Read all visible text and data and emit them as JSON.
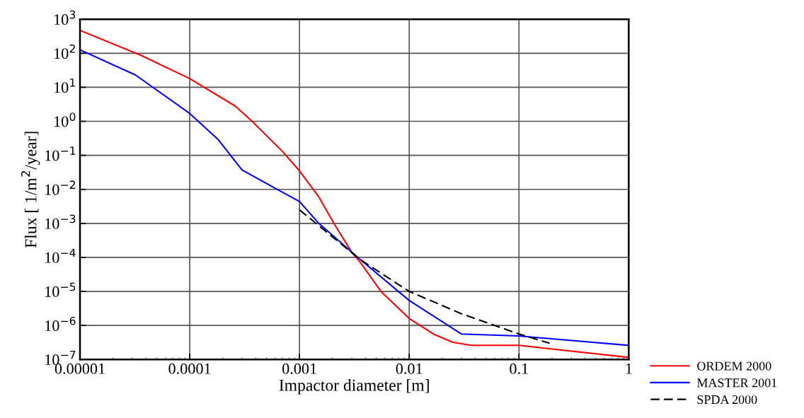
{
  "chart_data": {
    "type": "line",
    "xlabel": "Impactor diameter [m]",
    "ylabel": "Flux [ 1/m$^{2}$/year]",
    "log": "xy",
    "grid": true,
    "legend": "bottom right",
    "xlim": [
      1e-05,
      1
    ],
    "xticks": [
      {
        "value": 1e-05,
        "label": "0.00001"
      },
      {
        "value": 0.0001,
        "label": "0.0001"
      },
      {
        "value": 0.001,
        "label": "0.001"
      },
      {
        "value": 0.01,
        "label": "0.01"
      },
      {
        "value": 0.1,
        "label": "0.1"
      },
      1
    ],
    "ylim": [
      1e-07,
      1000
    ],
    "yticks": [
      {
        "value": 1e-07,
        "label": "10$^{−7}$"
      },
      {
        "value": 1e-06,
        "label": "10$^{−6}$"
      },
      {
        "value": 1e-05,
        "label": "10$^{−5}$"
      },
      {
        "value": 0.0001,
        "label": "10$^{−4}$"
      },
      {
        "value": 0.001,
        "label": "10$^{−3}$"
      },
      {
        "value": 0.01,
        "label": "10$^{−2}$"
      },
      {
        "value": 0.1,
        "label": "10$^{−1}$"
      },
      {
        "value": 1,
        "label": "10$^{0}$"
      },
      {
        "value": 10,
        "label": "10$^{1}$"
      },
      {
        "value": 100,
        "label": "10$^{2}$"
      },
      {
        "value": 1000,
        "label": "10$^{3}$"
      }
    ],
    "series": [
      {
        "name": "ORDEM 2000",
        "color": "#ff0000",
        "line_style": "solid",
        "x": [
          1e-05,
          3.6e-05,
          0.0001,
          0.00026,
          0.00037,
          0.0007,
          0.001,
          0.0015,
          0.0021,
          0.003,
          0.0036,
          0.0056,
          0.01,
          0.017,
          0.025,
          0.037,
          0.1,
          1
        ],
        "values": [
          470,
          87,
          18,
          2.8,
          1.0,
          0.13,
          0.035,
          0.006,
          0.0009,
          0.00014,
          7e-05,
          9.5e-06,
          1.6e-06,
          5.4e-07,
          3.2e-07,
          2.6e-07,
          2.6e-07,
          1.15e-07
        ]
      },
      {
        "name": "MASTER 2001",
        "color": "#0000ff",
        "line_style": "solid",
        "x": [
          1e-05,
          3.2e-05,
          0.0001,
          0.00018,
          0.0003,
          0.00062,
          0.001,
          0.0015,
          0.0036,
          0.01,
          0.03,
          0.1,
          1
        ],
        "values": [
          126,
          23,
          1.7,
          0.3,
          0.037,
          0.0102,
          0.0044,
          0.001,
          8.5e-05,
          5.4e-06,
          5.6e-07,
          4.9e-07,
          2.6e-07
        ]
      },
      {
        "name": "SPDA 2000",
        "color": "#000000",
        "line_style": "dashed",
        "x": [
          0.001,
          0.0036,
          0.01,
          0.03,
          0.1,
          0.19
        ],
        "values": [
          0.0025,
          8.5e-05,
          1e-05,
          2.2e-06,
          5.6e-07,
          3e-07
        ]
      }
    ]
  }
}
